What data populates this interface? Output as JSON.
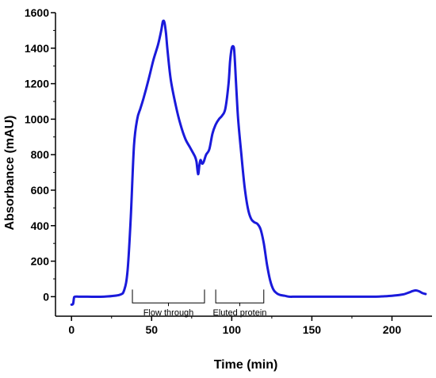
{
  "chart_data": {
    "type": "line",
    "title": "",
    "xlabel": "Time (min)",
    "ylabel": "Absorbance (mAU)",
    "xlim": [
      -10,
      225
    ],
    "ylim": [
      -110,
      1600
    ],
    "x_ticks": [
      0,
      50,
      100,
      150,
      200
    ],
    "x_tick_labels": [
      "0",
      "50",
      "100",
      "150",
      "200"
    ],
    "y_ticks": [
      0,
      200,
      400,
      600,
      800,
      1000,
      1200,
      1400,
      1600
    ],
    "y_tick_labels": [
      "0",
      "200",
      "400",
      "600",
      "800",
      "1000",
      "1200",
      "1400",
      "1600"
    ],
    "grid": false,
    "legend": "none",
    "line_color": "#1a1adb",
    "series": [
      {
        "x": [
          0,
          1,
          1.5,
          2,
          5,
          10,
          20,
          30,
          33,
          35,
          37,
          39,
          41,
          43,
          45,
          48,
          51,
          54,
          56,
          57,
          58,
          59,
          60,
          62,
          65,
          68,
          71,
          74,
          77,
          78,
          79,
          79.8,
          80.5,
          81.5,
          82.5,
          84,
          86,
          88,
          90,
          92,
          94,
          96,
          98,
          99,
          100,
          101,
          101.5,
          102,
          103,
          104,
          106,
          108,
          110,
          112,
          114,
          116,
          118,
          120,
          122,
          124,
          126,
          128,
          130,
          133,
          136,
          140,
          150,
          160,
          170,
          180,
          190,
          195,
          200,
          205,
          208,
          211,
          213,
          215,
          217,
          219,
          221
        ],
        "y": [
          -45,
          -40,
          -10,
          0,
          0,
          0,
          0,
          10,
          40,
          150,
          450,
          850,
          1000,
          1060,
          1120,
          1220,
          1330,
          1420,
          1500,
          1550,
          1545,
          1480,
          1380,
          1220,
          1080,
          970,
          890,
          840,
          790,
          760,
          690,
          740,
          770,
          750,
          760,
          800,
          830,
          920,
          970,
          1000,
          1020,
          1060,
          1200,
          1330,
          1400,
          1410,
          1390,
          1320,
          1150,
          1000,
          800,
          620,
          500,
          440,
          420,
          410,
          380,
          300,
          180,
          90,
          40,
          20,
          10,
          5,
          0,
          0,
          0,
          0,
          0,
          0,
          0,
          2,
          5,
          10,
          15,
          25,
          32,
          35,
          30,
          20,
          15
        ]
      }
    ],
    "annotations": [
      {
        "label": "Flow through",
        "x_start": 38,
        "x_end": 83
      },
      {
        "label": "Eluted protein",
        "x_start": 90,
        "x_end": 120
      }
    ]
  }
}
